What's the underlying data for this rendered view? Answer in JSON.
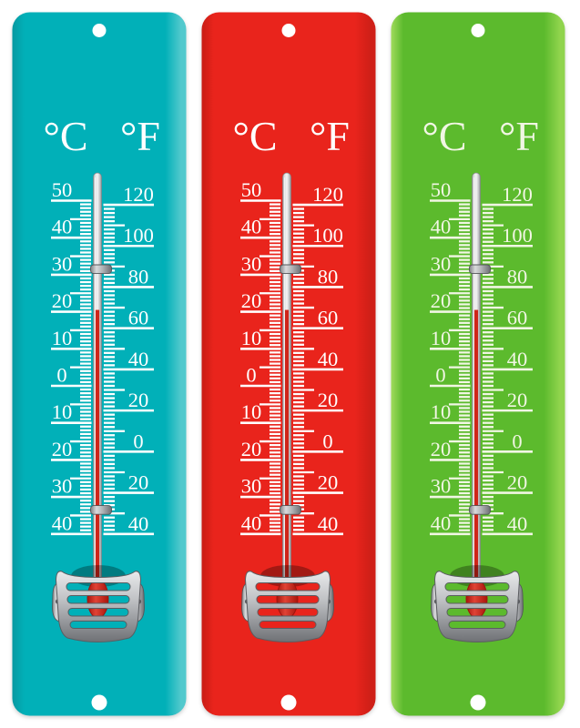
{
  "page": {
    "background": "#ffffff"
  },
  "thermometers": [
    {
      "id": "teal",
      "plate_main": "#01b0b8",
      "plate_edge_left": "#0899a1",
      "plate_edge_right": "#52c9cd",
      "tick_color": "#ffffff"
    },
    {
      "id": "red",
      "plate_main": "#e9241c",
      "plate_edge_left": "#c81d15",
      "plate_edge_right": "#cf1f17",
      "tick_color": "#ffffff"
    },
    {
      "id": "green",
      "plate_main": "#5cba2d",
      "plate_edge_left": "#a0da5c",
      "plate_edge_right": "#90d44d",
      "tick_color": "#f1f6e4"
    }
  ],
  "scale": {
    "celsius_unit": "°C",
    "fahrenheit_unit": "°F",
    "celsius_labels": [
      {
        "value": 50,
        "text": "50"
      },
      {
        "value": 40,
        "text": "40"
      },
      {
        "value": 30,
        "text": "30"
      },
      {
        "value": 20,
        "text": "20"
      },
      {
        "value": 10,
        "text": "10"
      },
      {
        "value": 0,
        "text": "0"
      },
      {
        "value": -10,
        "text": "10"
      },
      {
        "value": -20,
        "text": "20"
      },
      {
        "value": -30,
        "text": "30"
      },
      {
        "value": -40,
        "text": "40"
      }
    ],
    "fahrenheit_labels": [
      {
        "value": 120,
        "text": "120"
      },
      {
        "value": 100,
        "text": "100"
      },
      {
        "value": 80,
        "text": "80"
      },
      {
        "value": 60,
        "text": "60"
      },
      {
        "value": 40,
        "text": "40"
      },
      {
        "value": 20,
        "text": "20"
      },
      {
        "value": 0,
        "text": "0"
      },
      {
        "value": -20,
        "text": "20"
      },
      {
        "value": -40,
        "text": "40"
      }
    ],
    "celsius_range": [
      -40,
      50
    ],
    "fahrenheit_range": [
      -40,
      120
    ],
    "celsius_minor_step": 1,
    "celsius_medium_step": 5,
    "fahrenheit_minor_step": 2,
    "fahrenheit_medium_step": 10
  },
  "reading": {
    "column_top_celsius": 20.5
  },
  "hardware": {
    "liquid_color": "#cf2519",
    "liquid_outline": "#9e150d",
    "glass_outline": "#85878a",
    "clip_outline": "#54565a",
    "cage_outline": "#5b5d61",
    "rivet_color": "#595b5f",
    "hole_color": "#ffffff"
  }
}
